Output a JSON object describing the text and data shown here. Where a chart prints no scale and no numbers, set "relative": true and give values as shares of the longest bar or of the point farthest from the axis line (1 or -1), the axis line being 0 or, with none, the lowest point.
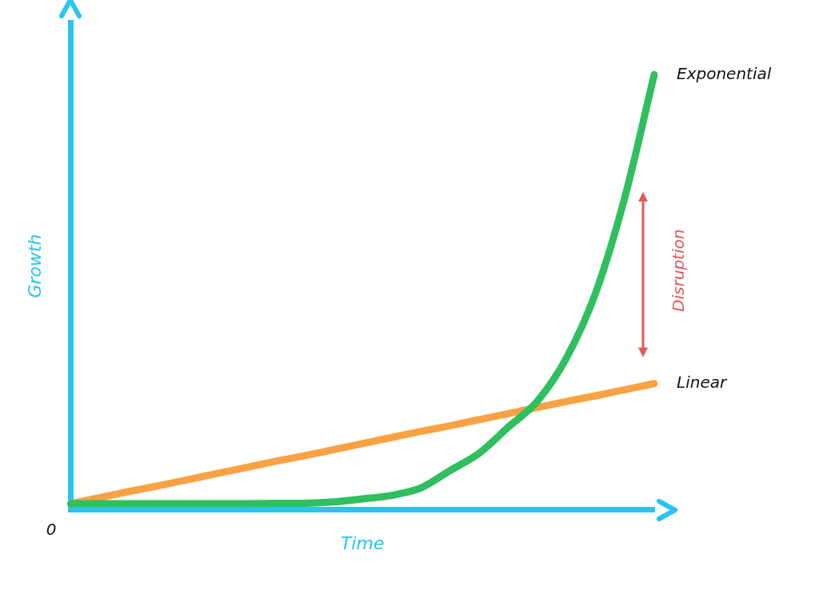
{
  "chart_data": {
    "type": "line",
    "relative": true,
    "xlabel": "Time",
    "ylabel": "Growth",
    "legend": false,
    "grid": false,
    "marker": "none",
    "line_style": "solid",
    "categories": [
      null,
      null,
      null,
      null,
      null,
      null,
      null,
      null,
      null,
      null,
      null,
      null,
      null,
      null,
      null,
      null,
      null,
      null,
      null,
      null,
      null
    ],
    "series": [
      {
        "name": "Exponential",
        "color": "#2fbf5f",
        "values": [
          0.014,
          0.014,
          0.014,
          0.014,
          0.014,
          0.014,
          0.014,
          0.015,
          0.015,
          0.018,
          0.025,
          0.033,
          0.05,
          0.09,
          0.13,
          0.19,
          0.25,
          0.35,
          0.5,
          0.72,
          1
        ]
      },
      {
        "name": "Linear",
        "color": "#f9a243",
        "values": [
          0.014,
          0.028,
          0.042,
          0.055,
          0.069,
          0.083,
          0.097,
          0.111,
          0.124,
          0.138,
          0.152,
          0.166,
          0.18,
          0.193,
          0.207,
          0.221,
          0.235,
          0.249,
          0.262,
          0.276,
          0.29
        ]
      }
    ],
    "annotations": [
      "0",
      "Disruption"
    ]
  }
}
